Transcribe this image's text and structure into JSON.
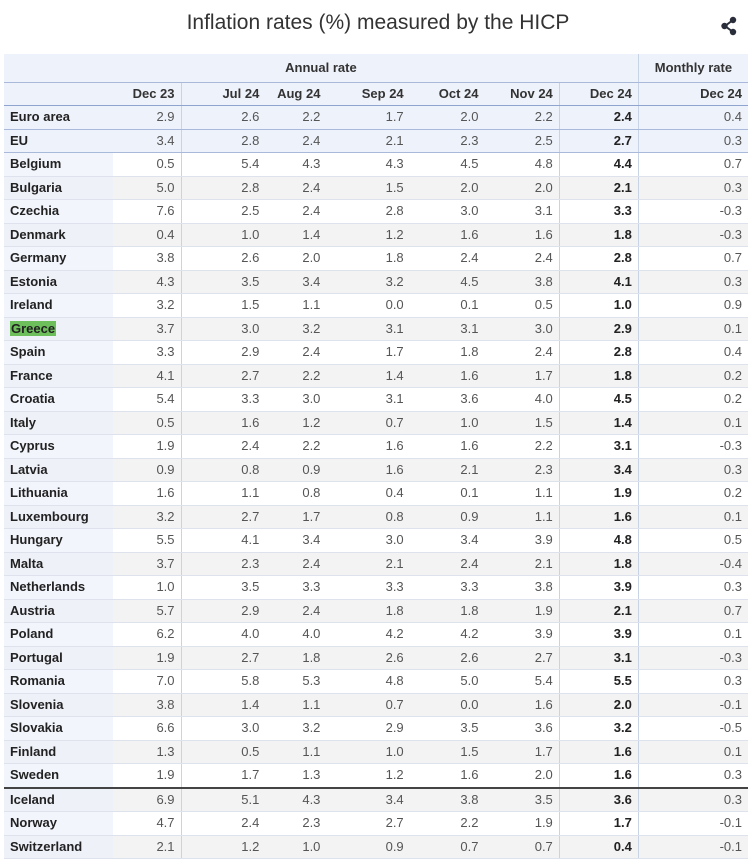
{
  "header": {
    "title": "Inflation rates (%) measured by the HICP",
    "share_icon": "share-icon"
  },
  "table": {
    "group_headers": {
      "annual": "Annual rate",
      "monthly": "Monthly rate"
    },
    "columns": [
      "Dec 23",
      "Jul 24",
      "Aug 24",
      "Sep 24",
      "Oct 24",
      "Nov 24",
      "Dec 24",
      "Dec 24"
    ],
    "highlight_country": "Greece",
    "rows": [
      {
        "country": "Euro area",
        "values": [
          "2.9",
          "2.6",
          "2.2",
          "1.7",
          "2.0",
          "2.2",
          "2.4",
          "0.4"
        ]
      },
      {
        "country": "EU",
        "values": [
          "3.4",
          "2.8",
          "2.4",
          "2.1",
          "2.3",
          "2.5",
          "2.7",
          "0.3"
        ]
      },
      {
        "country": "Belgium",
        "values": [
          "0.5",
          "5.4",
          "4.3",
          "4.3",
          "4.5",
          "4.8",
          "4.4",
          "0.7"
        ]
      },
      {
        "country": "Bulgaria",
        "values": [
          "5.0",
          "2.8",
          "2.4",
          "1.5",
          "2.0",
          "2.0",
          "2.1",
          "0.3"
        ]
      },
      {
        "country": "Czechia",
        "values": [
          "7.6",
          "2.5",
          "2.4",
          "2.8",
          "3.0",
          "3.1",
          "3.3",
          "-0.3"
        ]
      },
      {
        "country": "Denmark",
        "values": [
          "0.4",
          "1.0",
          "1.4",
          "1.2",
          "1.6",
          "1.6",
          "1.8",
          "-0.3"
        ]
      },
      {
        "country": "Germany",
        "values": [
          "3.8",
          "2.6",
          "2.0",
          "1.8",
          "2.4",
          "2.4",
          "2.8",
          "0.7"
        ]
      },
      {
        "country": "Estonia",
        "values": [
          "4.3",
          "3.5",
          "3.4",
          "3.2",
          "4.5",
          "3.8",
          "4.1",
          "0.3"
        ]
      },
      {
        "country": "Ireland",
        "values": [
          "3.2",
          "1.5",
          "1.1",
          "0.0",
          "0.1",
          "0.5",
          "1.0",
          "0.9"
        ]
      },
      {
        "country": "Greece",
        "values": [
          "3.7",
          "3.0",
          "3.2",
          "3.1",
          "3.1",
          "3.0",
          "2.9",
          "0.1"
        ]
      },
      {
        "country": "Spain",
        "values": [
          "3.3",
          "2.9",
          "2.4",
          "1.7",
          "1.8",
          "2.4",
          "2.8",
          "0.4"
        ]
      },
      {
        "country": "France",
        "values": [
          "4.1",
          "2.7",
          "2.2",
          "1.4",
          "1.6",
          "1.7",
          "1.8",
          "0.2"
        ]
      },
      {
        "country": "Croatia",
        "values": [
          "5.4",
          "3.3",
          "3.0",
          "3.1",
          "3.6",
          "4.0",
          "4.5",
          "0.2"
        ]
      },
      {
        "country": "Italy",
        "values": [
          "0.5",
          "1.6",
          "1.2",
          "0.7",
          "1.0",
          "1.5",
          "1.4",
          "0.1"
        ]
      },
      {
        "country": "Cyprus",
        "values": [
          "1.9",
          "2.4",
          "2.2",
          "1.6",
          "1.6",
          "2.2",
          "3.1",
          "-0.3"
        ]
      },
      {
        "country": "Latvia",
        "values": [
          "0.9",
          "0.8",
          "0.9",
          "1.6",
          "2.1",
          "2.3",
          "3.4",
          "0.3"
        ]
      },
      {
        "country": "Lithuania",
        "values": [
          "1.6",
          "1.1",
          "0.8",
          "0.4",
          "0.1",
          "1.1",
          "1.9",
          "0.2"
        ]
      },
      {
        "country": "Luxembourg",
        "values": [
          "3.2",
          "2.7",
          "1.7",
          "0.8",
          "0.9",
          "1.1",
          "1.6",
          "0.1"
        ]
      },
      {
        "country": "Hungary",
        "values": [
          "5.5",
          "4.1",
          "3.4",
          "3.0",
          "3.4",
          "3.9",
          "4.8",
          "0.5"
        ]
      },
      {
        "country": "Malta",
        "values": [
          "3.7",
          "2.3",
          "2.4",
          "2.1",
          "2.4",
          "2.1",
          "1.8",
          "-0.4"
        ]
      },
      {
        "country": "Netherlands",
        "values": [
          "1.0",
          "3.5",
          "3.3",
          "3.3",
          "3.3",
          "3.8",
          "3.9",
          "0.3"
        ]
      },
      {
        "country": "Austria",
        "values": [
          "5.7",
          "2.9",
          "2.4",
          "1.8",
          "1.8",
          "1.9",
          "2.1",
          "0.7"
        ]
      },
      {
        "country": "Poland",
        "values": [
          "6.2",
          "4.0",
          "4.0",
          "4.2",
          "4.2",
          "3.9",
          "3.9",
          "0.1"
        ]
      },
      {
        "country": "Portugal",
        "values": [
          "1.9",
          "2.7",
          "1.8",
          "2.6",
          "2.6",
          "2.7",
          "3.1",
          "-0.3"
        ]
      },
      {
        "country": "Romania",
        "values": [
          "7.0",
          "5.8",
          "5.3",
          "4.8",
          "5.0",
          "5.4",
          "5.5",
          "0.3"
        ]
      },
      {
        "country": "Slovenia",
        "values": [
          "3.8",
          "1.4",
          "1.1",
          "0.7",
          "0.0",
          "1.6",
          "2.0",
          "-0.1"
        ]
      },
      {
        "country": "Slovakia",
        "values": [
          "6.6",
          "3.0",
          "3.2",
          "2.9",
          "3.5",
          "3.6",
          "3.2",
          "-0.5"
        ]
      },
      {
        "country": "Finland",
        "values": [
          "1.3",
          "0.5",
          "1.1",
          "1.0",
          "1.5",
          "1.7",
          "1.6",
          "0.1"
        ]
      },
      {
        "country": "Sweden",
        "values": [
          "1.9",
          "1.7",
          "1.3",
          "1.2",
          "1.6",
          "2.0",
          "1.6",
          "0.3"
        ]
      },
      {
        "country": "Iceland",
        "values": [
          "6.9",
          "5.1",
          "4.3",
          "3.4",
          "3.8",
          "3.5",
          "3.6",
          "0.3"
        ]
      },
      {
        "country": "Norway",
        "values": [
          "4.7",
          "2.4",
          "2.3",
          "2.7",
          "2.2",
          "1.9",
          "1.7",
          "-0.1"
        ]
      },
      {
        "country": "Switzerland",
        "values": [
          "2.1",
          "1.2",
          "1.0",
          "0.9",
          "0.7",
          "0.7",
          "0.4",
          "-0.1"
        ]
      }
    ]
  },
  "colors": {
    "header_bg": "#eef2fb",
    "highlight": "#6dbf5c",
    "alt_row": "#f3f3f3"
  }
}
